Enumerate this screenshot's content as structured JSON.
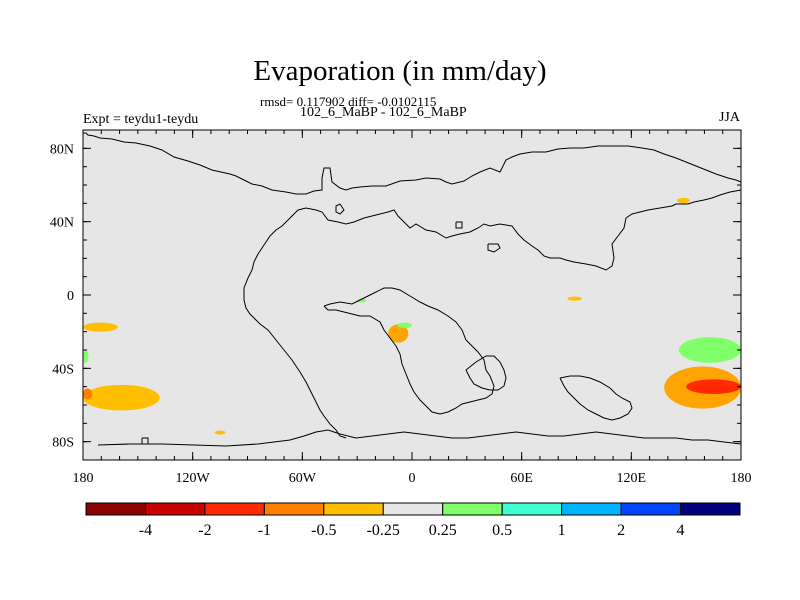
{
  "title": "Evaporation (in mm/day)",
  "stats_line": "rmsd= 0.117902 diff= -0.0102115",
  "cases_line": "102_6_MaBP - 102_6_MaBP",
  "left_label": "Expt = teydu1-teydu",
  "right_label": "JJA",
  "chart_data": {
    "type": "heatmap",
    "title": "Evaporation (in mm/day)",
    "projection": "cylindrical equidistant",
    "x_ticks": [
      {
        "value": -180,
        "label": "180"
      },
      {
        "value": -120,
        "label": "120W"
      },
      {
        "value": -60,
        "label": "60W"
      },
      {
        "value": 0,
        "label": "0"
      },
      {
        "value": 60,
        "label": "60E"
      },
      {
        "value": 120,
        "label": "120E"
      },
      {
        "value": 180,
        "label": "180"
      }
    ],
    "y_ticks": [
      {
        "value": 80,
        "label": "80N"
      },
      {
        "value": 40,
        "label": "40N"
      },
      {
        "value": 0,
        "label": "0"
      },
      {
        "value": -40,
        "label": "40S"
      },
      {
        "value": -80,
        "label": "80S"
      }
    ],
    "xlim": [
      -180,
      180
    ],
    "ylim": [
      -90,
      90
    ],
    "background_color": "#e6e6e6",
    "contour_levels": [
      "-4",
      "-2",
      "-1",
      "-0.5",
      "-0.25",
      "0.25",
      "0.5",
      "1",
      "2",
      "4"
    ],
    "colorbar_colors": [
      "#8b0000",
      "#c80000",
      "#ff2a00",
      "#ff8000",
      "#ffbf00",
      "#e6e6e6",
      "#80ff6a",
      "#40ffd2",
      "#00b4ff",
      "#0044ff",
      "#00007f"
    ],
    "anomaly_regions": [
      {
        "name": "pacific-south-tropical",
        "lon": [
          -180,
          -161
        ],
        "lat": [
          -20,
          -15
        ],
        "class": "-0.5 to -0.25"
      },
      {
        "name": "southwest-pacific-midlat",
        "lon": [
          -180,
          -138
        ],
        "lat": [
          -63,
          -49
        ],
        "class": "-0.5 to -0.25"
      },
      {
        "name": "southwest-pacific-core",
        "lon": [
          -180,
          -175
        ],
        "lat": [
          -57,
          -51
        ],
        "class": "-1 to -0.5"
      },
      {
        "name": "south-pacific-edge-green",
        "lon": [
          -180,
          -177
        ],
        "lat": [
          -37,
          -30
        ],
        "class": "0.25 to 0.5"
      },
      {
        "name": "south-atlantic-high-lat",
        "lon": [
          -108,
          -102
        ],
        "lat": [
          -76,
          -74
        ],
        "class": "-0.5 to -0.25"
      },
      {
        "name": "south-atlantic-tropics",
        "lon": [
          -13,
          -2
        ],
        "lat": [
          -26,
          -16
        ],
        "class": "-1 to -0.25"
      },
      {
        "name": "gulf-of-guinea-green",
        "lon": [
          -30,
          -25
        ],
        "lat": [
          -4,
          -2
        ],
        "class": "0.25 to 0.5"
      },
      {
        "name": "west-africa-coast-green",
        "lon": [
          -8,
          0
        ],
        "lat": [
          -18,
          -15
        ],
        "class": "0.25 to 0.5"
      },
      {
        "name": "indian-ocean-tropics",
        "lon": [
          85,
          93
        ],
        "lat": [
          -3,
          -1
        ],
        "class": "-0.5 to -0.25"
      },
      {
        "name": "north-pacific",
        "lon": [
          145,
          152
        ],
        "lat": [
          50,
          53
        ],
        "class": "-0.5 to -0.25"
      },
      {
        "name": "tasman-green",
        "lon": [
          146,
          180
        ],
        "lat": [
          -37,
          -23
        ],
        "class": "0.25 to 0.5"
      },
      {
        "name": "tasman-orange",
        "lon": [
          138,
          180
        ],
        "lat": [
          -62,
          -39
        ],
        "class": "-1 to -0.25"
      },
      {
        "name": "tasman-core",
        "lon": [
          150,
          180
        ],
        "lat": [
          -54,
          -46
        ],
        "class": "-2 to -1"
      }
    ]
  }
}
